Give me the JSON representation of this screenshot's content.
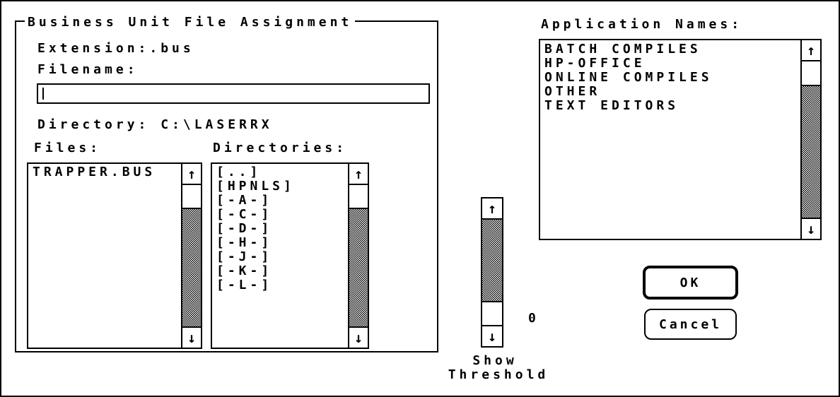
{
  "group_title": "Business Unit File Assignment",
  "extension_label": "Extension:.bus",
  "filename_label": "Filename:",
  "filename_value": "",
  "directory_label": "Directory: C:\\LASERRX",
  "files_label": "Files:",
  "files": [
    "TRAPPER.BUS"
  ],
  "directories_label": "Directories:",
  "directories": [
    "[..]",
    "[HPNLS]",
    "[-A-]",
    "[-C-]",
    "[-D-]",
    "[-H-]",
    "[-J-]",
    "[-K-]",
    "[-L-]"
  ],
  "application_names_label": "Application Names:",
  "application_names": [
    "BATCH COMPILES",
    "HP-OFFICE",
    "ONLINE COMPILES",
    "OTHER",
    "TEXT EDITORS"
  ],
  "threshold_value": "0",
  "threshold_label_1": "Show",
  "threshold_label_2": "Threshold",
  "ok_label": "OK",
  "cancel_label": "Cancel",
  "icons": {
    "up": "↑",
    "down": "↓"
  }
}
